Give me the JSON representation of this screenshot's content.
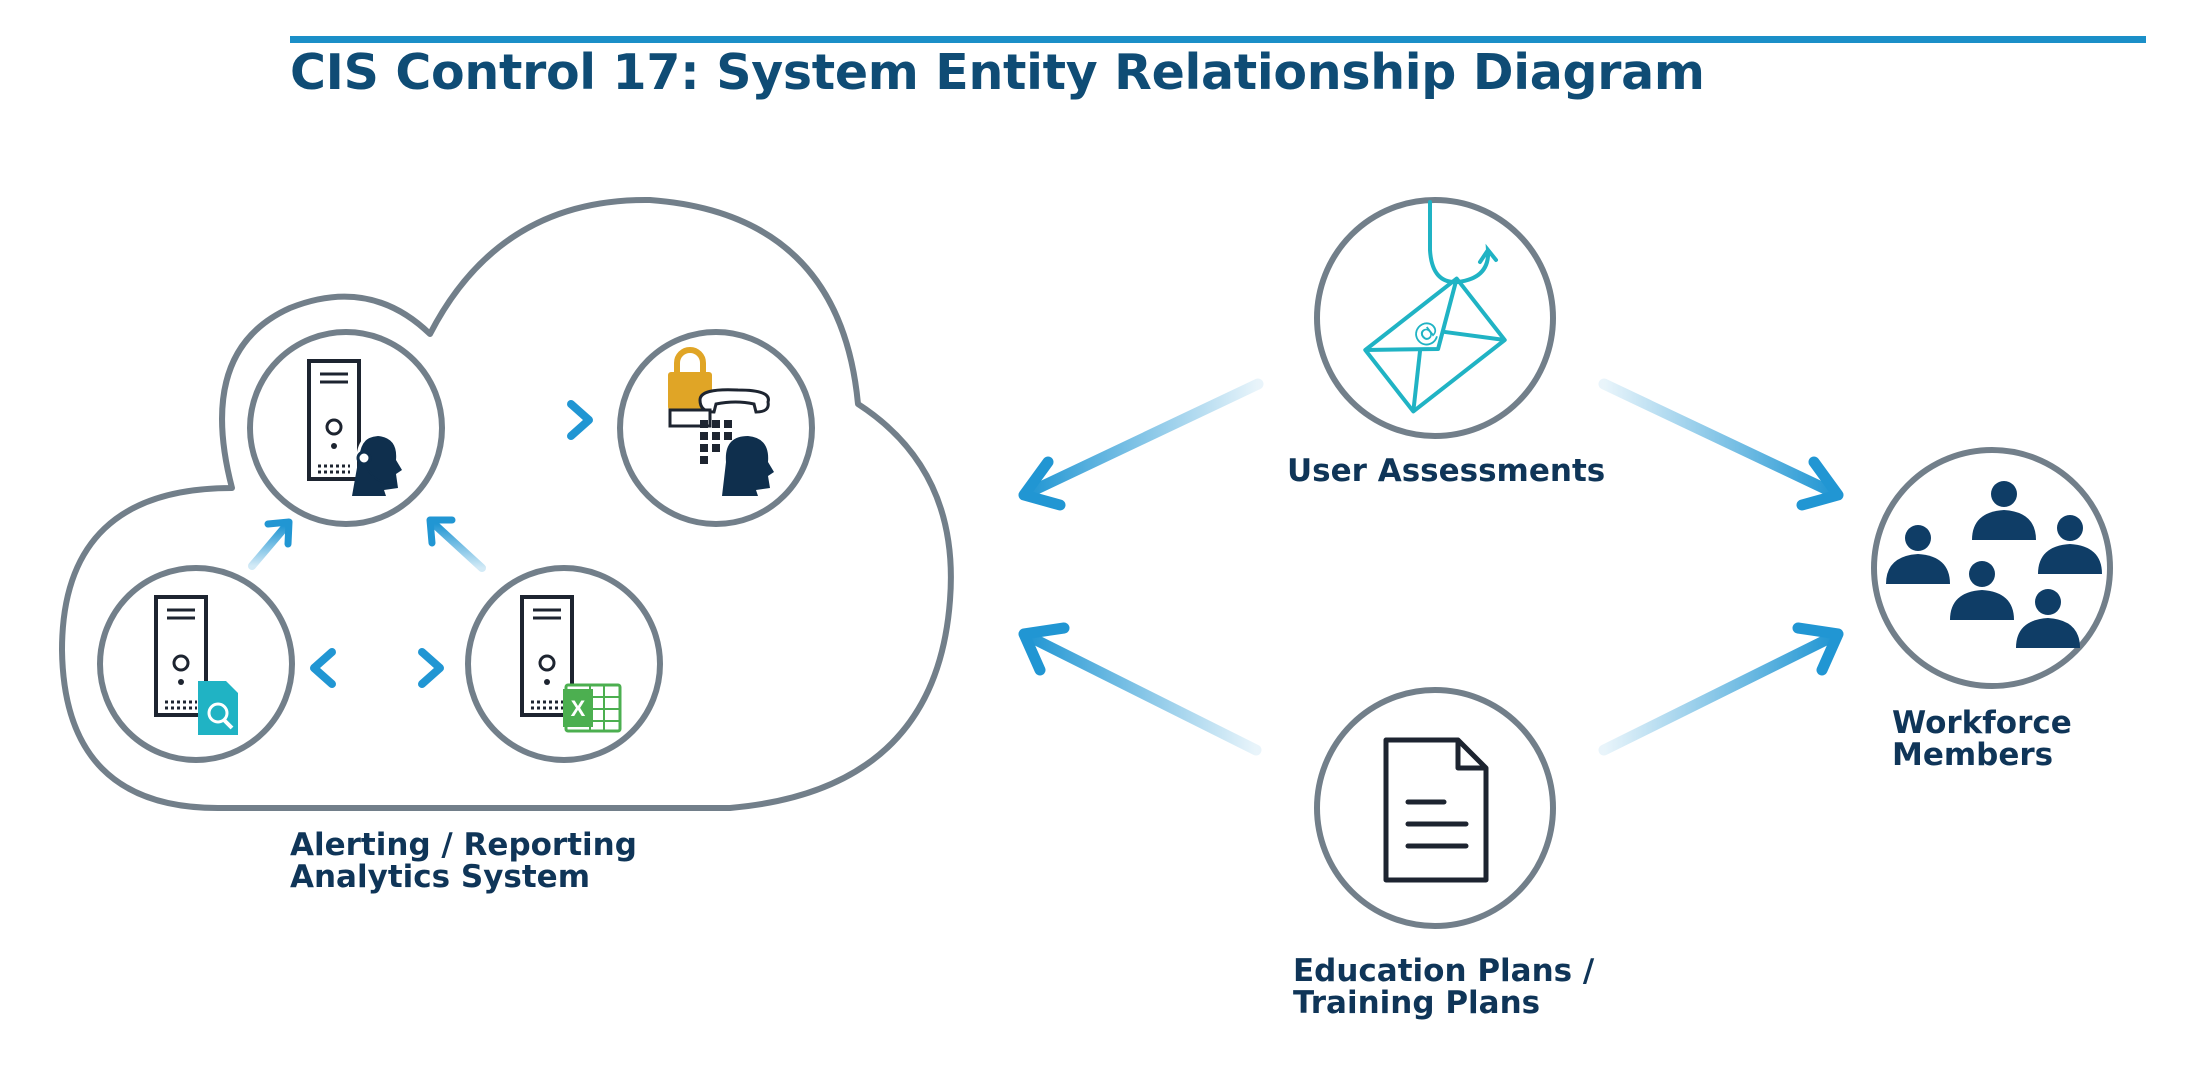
{
  "title": "CIS Control 17: System Entity Relationship Diagram",
  "labels": {
    "alerting": [
      "Alerting / Reporting",
      "Analytics System"
    ],
    "user_assessments": "User Assessments",
    "workforce": [
      "Workforce",
      "Members"
    ],
    "education": [
      "Education Plans /",
      "Training Plans"
    ]
  },
  "icons": {
    "server_support": "server-with-headset-agent-icon",
    "secure_phone": "lock-phone-keypad-agent-icon",
    "server_search": "server-with-search-document-icon",
    "server_spreadsheet": "server-with-spreadsheet-icon",
    "phishing_email": "phishing-email-hook-icon",
    "document": "document-icon",
    "workforce": "group-of-people-icon"
  },
  "colors": {
    "title": "#0f4c75",
    "label": "#0f3558",
    "accent_bar": "#1b8fc8",
    "arrow": "#2196d3",
    "circle_outline": "#727f8a",
    "lock": "#e0a526",
    "teal": "#20b3c4",
    "excel_green": "#4caf50"
  }
}
